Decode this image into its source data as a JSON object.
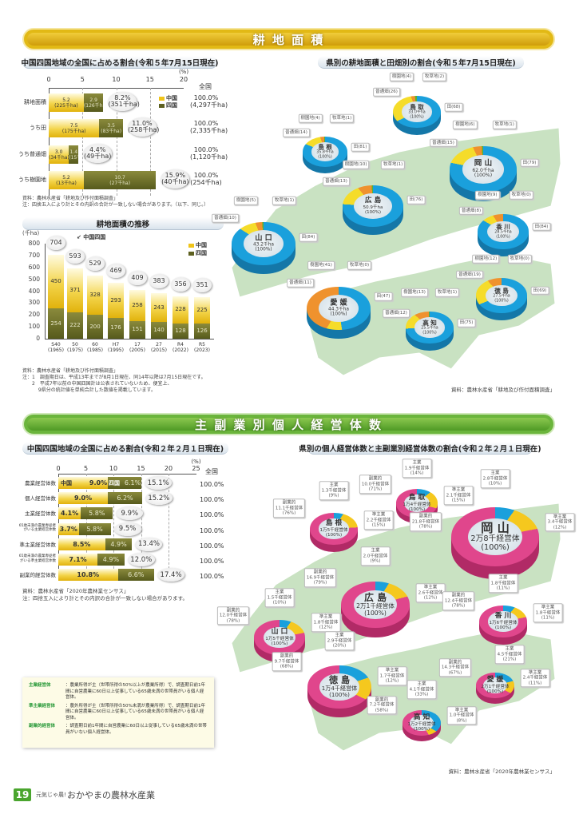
{
  "banners": {
    "farmland": "耕 地 面 積",
    "management": "主 副 業 別 個 人 経 営 体 数"
  },
  "chart_data": [
    {
      "type": "bar",
      "title": "中国四国地域の全国に占める割合(令和５年7月15日現在)",
      "unit": "(%)",
      "xlim": [
        0,
        20
      ],
      "ticks": [
        "0",
        "5",
        "10",
        "15",
        "20"
      ],
      "national_header": "全国",
      "legend": [
        "中国",
        "四国"
      ],
      "rows": [
        {
          "label": "耕地面積",
          "chugoku": 5.2,
          "chugoku_text": "5.2",
          "chugoku_sub": "(225千ha)",
          "shikoku": 2.9,
          "shikoku_text": "2.9",
          "shikoku_sub": "(126千ha)",
          "total": "8.2%",
          "total_sub": "(351千ha)",
          "national": "100.0%",
          "national_sub": "(4,297千ha)"
        },
        {
          "label": "うち田",
          "chugoku": 7.5,
          "chugoku_text": "7.5",
          "chugoku_sub": "(175千ha)",
          "shikoku": 3.5,
          "shikoku_text": "3.5",
          "shikoku_sub": "(83千ha)",
          "total": "11.0%",
          "total_sub": "(258千ha)",
          "national": "100.0%",
          "national_sub": "(2,335千ha)"
        },
        {
          "label": "うち普通畑",
          "chugoku": 3.0,
          "chugoku_text": "3.0",
          "chugoku_sub": "(34千ha)",
          "shikoku": 1.4,
          "shikoku_text": "1.4",
          "shikoku_sub": "(15千ha)",
          "total": "4.4%",
          "total_sub": "(49千ha)",
          "national": "100.0%",
          "national_sub": "(1,120千ha)"
        },
        {
          "label": "うち樹園地",
          "chugoku": 5.2,
          "chugoku_text": "5.2",
          "chugoku_sub": "(13千ha)",
          "shikoku": 10.7,
          "shikoku_text": "10.7",
          "shikoku_sub": "(27千ha)",
          "total": "15.9%",
          "total_sub": "(40千ha)",
          "national": "100.0%",
          "national_sub": "(254千ha)"
        }
      ],
      "notes": [
        "資料：農林水産省「耕地及び作付面積調査」",
        "注：四捨五入により計とその内訳の合計が一致しない場合があります。（以下、同じ。）"
      ]
    },
    {
      "type": "bar",
      "title": "耕地面積の推移",
      "ylabel": "(千ha)",
      "ylim": [
        0,
        800
      ],
      "yticks": [
        "0",
        "100",
        "200",
        "300",
        "400",
        "500",
        "600",
        "700",
        "800"
      ],
      "legend": [
        "中国",
        "四国"
      ],
      "total_label": "中国四国",
      "categories": [
        "S40\n(1965)",
        "50\n(1975)",
        "60\n(1985)",
        "H7\n(1995)",
        "17\n(2005)",
        "27\n(2015)",
        "R4\n(2022)",
        "R5\n(2023)"
      ],
      "series": [
        {
          "name": "四国",
          "values": [
            254,
            222,
            200,
            176,
            151,
            140,
            128,
            126
          ]
        },
        {
          "name": "中国",
          "values": [
            450,
            371,
            328,
            293,
            258,
            243,
            228,
            225
          ]
        }
      ],
      "totals": [
        704,
        593,
        529,
        469,
        409,
        383,
        356,
        351
      ],
      "notes": [
        "資料：農林水産省「耕地及び作付面積調査」",
        "注：1　調査期日は、平成13年までが8月1日現在、同14年以降は7月15日現在です。",
        "　　2　平成7年以前の中国四国計は公表されていないため、便宜上、",
        "　　　 9県分の統計値を単純合計した数値を掲載しています。"
      ]
    },
    {
      "type": "bar",
      "title": "中国四国地域の全国に占める割合(令和２年２月１日現在)",
      "unit": "(%)",
      "xlim": [
        0,
        25
      ],
      "ticks": [
        "0",
        "5",
        "10",
        "15",
        "20",
        "25"
      ],
      "national_header": "全国",
      "legend": [
        "中国",
        "四国"
      ],
      "rows": [
        {
          "label": "農業経営体数",
          "chugoku": 9.0,
          "shikoku": 6.1,
          "total": "15.1%",
          "national": "100.0%"
        },
        {
          "label": "個人経営体数",
          "chugoku": 9.0,
          "shikoku": 6.2,
          "total": "15.2%",
          "national": "100.0%"
        },
        {
          "label": "主業経営体数",
          "chugoku": 4.1,
          "shikoku": 5.8,
          "total": "9.9%",
          "national": "100.0%"
        },
        {
          "label": "65歳未満の農業専従者がいる主業経営体数",
          "chugoku": 3.7,
          "shikoku": 5.8,
          "total": "9.5%",
          "national": "100.0%"
        },
        {
          "label": "準主業経営体数",
          "chugoku": 8.5,
          "shikoku": 4.9,
          "total": "13.4%",
          "national": "100.0%"
        },
        {
          "label": "65歳未満の農業専従者がいる準主業経営体数",
          "chugoku": 7.1,
          "shikoku": 4.9,
          "total": "12.0%",
          "national": "100.0%"
        },
        {
          "label": "副業的経営体数",
          "chugoku": 10.8,
          "shikoku": 6.6,
          "total": "17.4%",
          "national": "100.0%"
        }
      ],
      "notes": [
        "資料：農林水産省「2020年農林業センサス」",
        "注：四捨五入により計とその内訳の合計が一致しない場合があります。"
      ]
    },
    {
      "type": "pie",
      "title": "県別の耕地面積と田畑別の割合(令和５年7月15日現在)",
      "colors": {
        "田": "#1aa0dc",
        "普通畑": "#f5dc2a",
        "樹園地": "#ef922e",
        "牧草地": "#5cb030"
      },
      "prefectures": [
        {
          "name": "鳥 取",
          "total": "33.0千ha",
          "pct": "(100%)",
          "slices": [
            {
              "k": "田",
              "v": 68,
              "label": "田(68)"
            },
            {
              "k": "普通畑",
              "v": 26,
              "label": "普通畑(26)"
            },
            {
              "k": "樹園地",
              "v": 4,
              "label": "樹園地(4)"
            },
            {
              "k": "牧草地",
              "v": 2,
              "label": "牧草地(2)"
            }
          ]
        },
        {
          "name": "島 根",
          "total": "35.8千ha",
          "pct": "(100%)",
          "slices": [
            {
              "k": "田",
              "v": 81,
              "label": "田(81)"
            },
            {
              "k": "普通畑",
              "v": 14,
              "label": "普通畑(14)"
            },
            {
              "k": "樹園地",
              "v": 4,
              "label": "樹園地(4)"
            },
            {
              "k": "牧草地",
              "v": 1,
              "label": "牧草地(1)"
            }
          ]
        },
        {
          "name": "岡 山",
          "total": "62.0千ha",
          "pct": "(100%)",
          "slices": [
            {
              "k": "田",
              "v": 79,
              "label": "田(79)"
            },
            {
              "k": "普通畑",
              "v": 15,
              "label": "普通畑(15)"
            },
            {
              "k": "樹園地",
              "v": 6,
              "label": "樹園地(6)"
            },
            {
              "k": "牧草地",
              "v": 1,
              "label": "牧草地(1)"
            }
          ]
        },
        {
          "name": "広 島",
          "total": "50.9千ha",
          "pct": "(100%)",
          "slices": [
            {
              "k": "田",
              "v": 76,
              "label": "田(76)"
            },
            {
              "k": "普通畑",
              "v": 13,
              "label": "普通畑(13)"
            },
            {
              "k": "樹園地",
              "v": 10,
              "label": "樹園地(10)"
            },
            {
              "k": "牧草地",
              "v": 1,
              "label": "牧草地(1)"
            }
          ]
        },
        {
          "name": "山 口",
          "total": "43.2千ha",
          "pct": "(100%)",
          "slices": [
            {
              "k": "田",
              "v": 84,
              "label": "田(84)"
            },
            {
              "k": "普通畑",
              "v": 10,
              "label": "普通畑(10)"
            },
            {
              "k": "樹園地",
              "v": 5,
              "label": "樹園地(5)"
            },
            {
              "k": "牧草地",
              "v": 1,
              "label": "牧草地(1)"
            }
          ]
        },
        {
          "name": "香 川",
          "total": "28.5千ha",
          "pct": "(100%)",
          "slices": [
            {
              "k": "田",
              "v": 84,
              "label": "田(84)"
            },
            {
              "k": "普通畑",
              "v": 8,
              "label": "普通畑(8)"
            },
            {
              "k": "樹園地",
              "v": 9,
              "label": "樹園地(9)"
            },
            {
              "k": "牧草地",
              "v": 0,
              "label": "牧草地(0)"
            }
          ]
        },
        {
          "name": "徳 島",
          "total": "27.5千ha",
          "pct": "(100%)",
          "slices": [
            {
              "k": "田",
              "v": 69,
              "label": "田(69)"
            },
            {
              "k": "普通畑",
              "v": 19,
              "label": "普通畑(19)"
            },
            {
              "k": "樹園地",
              "v": 12,
              "label": "樹園地(12)"
            },
            {
              "k": "牧草地",
              "v": 0,
              "label": "牧草地(0)"
            }
          ]
        },
        {
          "name": "愛 媛",
          "total": "44.3千ha",
          "pct": "(100%)",
          "slices": [
            {
              "k": "田",
              "v": 47,
              "label": "田(47)"
            },
            {
              "k": "普通畑",
              "v": 11,
              "label": "普通畑(11)"
            },
            {
              "k": "樹園地",
              "v": 41,
              "label": "樹園地(41)"
            },
            {
              "k": "牧草地",
              "v": 0,
              "label": "牧草地(0)"
            }
          ]
        },
        {
          "name": "高 知",
          "total": "25.5千ha",
          "pct": "(100%)",
          "slices": [
            {
              "k": "田",
              "v": 75,
              "label": "田(75)"
            },
            {
              "k": "普通畑",
              "v": 12,
              "label": "普通畑(12)"
            },
            {
              "k": "樹園地",
              "v": 13,
              "label": "樹園地(13)"
            },
            {
              "k": "牧草地",
              "v": 1,
              "label": "牧草地(1)"
            }
          ]
        }
      ],
      "source": "資料：農林水産省「耕地及び作付面積調査」"
    },
    {
      "type": "pie",
      "title": "県別の個人経営体数と主副業別経営体数の割合(令和２年２月１日現在)",
      "colors": {
        "主業": "#1aa0dc",
        "準主業": "#f5c81e",
        "副業的": "#e0468c"
      },
      "prefectures": [
        {
          "name": "鳥 取",
          "total": "1万4千経営体",
          "pct": "(100%)",
          "slices": [
            {
              "k": "主業",
              "v": 14,
              "label": "主業\n1.9千経営体\n(14%)"
            },
            {
              "k": "準主業",
              "v": 15,
              "label": "準主業\n2.1千経営体\n(15%)"
            },
            {
              "k": "副業的",
              "v": 71,
              "label": "副業的\n10.0千経営体\n(71%)"
            }
          ]
        },
        {
          "name": "島 根",
          "total": "1万5千経営体",
          "pct": "(100%)",
          "slices": [
            {
              "k": "主業",
              "v": 9,
              "label": "主業\n1.3千経営体\n(9%)"
            },
            {
              "k": "準主業",
              "v": 15,
              "label": "準主業\n2.2千経営体\n(15%)"
            },
            {
              "k": "副業的",
              "v": 76,
              "label": "副業的\n11.1千経営体\n(76%)"
            }
          ]
        },
        {
          "name": "岡 山",
          "total": "2万8千経営体",
          "pct": "(100%)",
          "slices": [
            {
              "k": "主業",
              "v": 10,
              "label": "主業\n2.8千経営体\n(10%)"
            },
            {
              "k": "準主業",
              "v": 12,
              "label": "準主業\n3.4千経営体\n(12%)"
            },
            {
              "k": "副業的",
              "v": 78,
              "label": "副業的\n21.8千経営体\n(78%)"
            }
          ]
        },
        {
          "name": "広 島",
          "total": "2万1千経営体",
          "pct": "(100%)",
          "slices": [
            {
              "k": "主業",
              "v": 9,
              "label": "主業\n2.0千経営体\n(9%)"
            },
            {
              "k": "準主業",
              "v": 12,
              "label": "準主業\n2.6千経営体\n(12%)"
            },
            {
              "k": "副業的",
              "v": 79,
              "label": "副業的\n16.9千経営体\n(79%)"
            }
          ]
        },
        {
          "name": "山 口",
          "total": "1万5千経営体",
          "pct": "(100%)",
          "slices": [
            {
              "k": "主業",
              "v": 10,
              "label": "主業\n1.5千経営体\n(10%)"
            },
            {
              "k": "準主業",
              "v": 12,
              "label": "準主業\n1.8千経営体\n(12%)"
            },
            {
              "k": "副業的",
              "v": 78,
              "label": "副業的\n12.0千経営体\n(78%)"
            }
          ]
        },
        {
          "name": "香 川",
          "total": "1万6千経営体",
          "pct": "(100%)",
          "slices": [
            {
              "k": "主業",
              "v": 11,
              "label": "主業\n1.8千経営体\n(11%)"
            },
            {
              "k": "準主業",
              "v": 11,
              "label": "準主業\n1.8千経営体\n(11%)"
            },
            {
              "k": "副業的",
              "v": 78,
              "label": "副業的\n12.4千経営体\n(78%)"
            }
          ]
        },
        {
          "name": "徳 島",
          "total": "1万4千経営体",
          "pct": "(100%)",
          "slices": [
            {
              "k": "主業",
              "v": 20,
              "label": "主業\n2.9千経営体\n(20%)"
            },
            {
              "k": "準主業",
              "v": 12,
              "label": "準主業\n1.7千経営体\n(12%)"
            },
            {
              "k": "副業的",
              "v": 68,
              "label": "副業的\n9.7千経営体\n(68%)"
            }
          ]
        },
        {
          "name": "愛 媛",
          "total": "2万1千経営体",
          "pct": "(100%)",
          "slices": [
            {
              "k": "主業",
              "v": 21,
              "label": "主業\n4.5千経営体\n(21%)"
            },
            {
              "k": "準主業",
              "v": 11,
              "label": "準主業\n2.4千経営体\n(11%)"
            },
            {
              "k": "副業的",
              "v": 67,
              "label": "副業的\n14.3千経営体\n(67%)"
            }
          ]
        },
        {
          "name": "高 知",
          "total": "1万2千経営体",
          "pct": "(100%)",
          "slices": [
            {
              "k": "主業",
              "v": 33,
              "label": "主業\n4.1千経営体\n(33%)"
            },
            {
              "k": "準主業",
              "v": 8,
              "label": "準主業\n1.0千経営体\n(8%)"
            },
            {
              "k": "副業的",
              "v": 58,
              "label": "副業的\n7.2千経営体\n(58%)"
            }
          ]
        }
      ],
      "source": "資料：農林水産省「2020年農林業センサス」"
    }
  ],
  "definitions": [
    {
      "term": "主業経営体",
      "desc": "：農業所得が主（世帯所得の50%以上が農業所得）で、調査期日前1年間に自営農業に60日以上従事している65歳未満の世帯員がいる個人経営体。"
    },
    {
      "term": "準主業経営体",
      "desc": "：農外所得が主（世帯所得の50%未満が農業所得）で、調査期日前1年間に自営農業に60日以上従事している65歳未満の世帯員がいる個人経営体。"
    },
    {
      "term": "副業的経営体",
      "desc": "：調査期日前1年間に自営農業に60日以上従事している65歳未満の世帯員がいない個人経営体。"
    }
  ],
  "footer": {
    "page": "19",
    "tagline": "元気じゃ農!",
    "title": "おかやまの農林水産業"
  }
}
